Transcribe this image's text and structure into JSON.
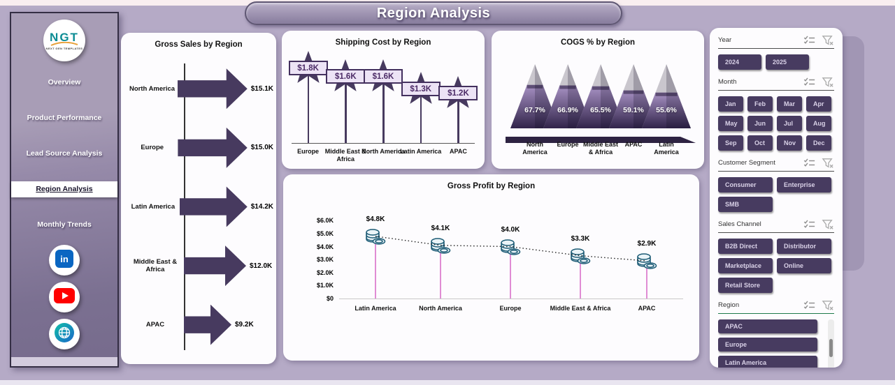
{
  "title": "Region Analysis",
  "sidebar": {
    "logo": {
      "text": "NGT",
      "subtext": "NEXT GEN TEMPLATES"
    },
    "items": [
      {
        "label": "Overview",
        "active": false
      },
      {
        "label": "Product Performance",
        "active": false
      },
      {
        "label": "Lead Source Analysis",
        "active": false
      },
      {
        "label": "Region Analysis",
        "active": true
      },
      {
        "label": "Monthly Trends",
        "active": false
      }
    ],
    "social": [
      "linkedin",
      "youtube",
      "globe"
    ]
  },
  "chart_data": [
    {
      "type": "bar",
      "orientation": "horizontal",
      "title": "Gross Sales by Region",
      "categories": [
        "North America",
        "Europe",
        "Latin America",
        "Middle East & Africa",
        "APAC"
      ],
      "values": [
        15.1,
        15.0,
        14.2,
        12.0,
        9.2
      ],
      "labels": [
        "$15.1K",
        "$15.0K",
        "$14.2K",
        "$12.0K",
        "$9.2K"
      ],
      "unit": "K USD",
      "xlim": [
        0,
        15.1
      ],
      "grid": false
    },
    {
      "type": "lollipop",
      "title": "Shipping Cost by Region",
      "categories": [
        "Europe",
        "Middle East & Africa",
        "North America",
        "Latin America",
        "APAC"
      ],
      "values": [
        1.8,
        1.6,
        1.6,
        1.3,
        1.2
      ],
      "labels": [
        "$1.8K",
        "$1.6K",
        "$1.6K",
        "$1.3K",
        "$1.2K"
      ],
      "unit": "K USD",
      "grid": false
    },
    {
      "type": "pyramid",
      "title": "COGS % by Region",
      "categories": [
        "North America",
        "Europe",
        "Middle East & Africa",
        "APAC",
        "Latin America"
      ],
      "values": [
        67.7,
        66.9,
        65.5,
        59.1,
        55.6
      ],
      "labels": [
        "67.7%",
        "66.9%",
        "65.5%",
        "59.1%",
        "55.6%"
      ],
      "unit": "percent",
      "grid": false
    },
    {
      "type": "line",
      "title": "Gross Profit by Region",
      "categories": [
        "Latin America",
        "North America",
        "Europe",
        "Middle East & Africa",
        "APAC"
      ],
      "values": [
        4.8,
        4.1,
        4.0,
        3.3,
        2.9
      ],
      "labels": [
        "$4.8K",
        "$4.1K",
        "$4.0K",
        "$3.3K",
        "$2.9K"
      ],
      "y_ticks": [
        "$6.0K",
        "$5.0K",
        "$4.0K",
        "$3.0K",
        "$2.0K",
        "$1.0K",
        "$0"
      ],
      "ylim": [
        0,
        6
      ],
      "unit": "K USD",
      "grid": false,
      "marker": "coin-stack-icon",
      "line_style": "dotted"
    }
  ],
  "slicers": [
    {
      "label": "Year",
      "options": [
        "2024",
        "2025"
      ],
      "icons": [
        "select-all-icon",
        "clear-filter-icon"
      ]
    },
    {
      "label": "Month",
      "options": [
        "Jan",
        "Feb",
        "Mar",
        "Apr",
        "May",
        "Jun",
        "Jul",
        "Aug",
        "Sep",
        "Oct",
        "Nov",
        "Dec"
      ],
      "icons": [
        "select-all-icon",
        "clear-filter-icon"
      ]
    },
    {
      "label": "Customer Segment",
      "options": [
        "Consumer",
        "Enterprise",
        "SMB"
      ],
      "icons": [
        "select-all-icon",
        "clear-filter-icon"
      ]
    },
    {
      "label": "Sales Channel",
      "options": [
        "B2B Direct",
        "Distributor",
        "Marketplace",
        "Online",
        "Retail Store"
      ],
      "icons": [
        "select-all-icon",
        "clear-filter-icon"
      ]
    },
    {
      "label": "Region",
      "options": [
        "APAC",
        "Europe",
        "Latin America"
      ],
      "icons": [
        "select-all-icon",
        "clear-filter-icon"
      ],
      "scrollbar": true
    }
  ],
  "colors": {
    "accent_purple": "#473a5f",
    "background": "#b5aac6",
    "panel": "#fdfcfe",
    "pin_tag_bg": "#ece3f5",
    "pyramid_top": "#a18abd",
    "pyramid_bottom": "#3a2b52",
    "pyramid_cap": "#c9c6cd",
    "stem_pink": "#e08cd4",
    "coin_teal": "#1c5b75",
    "region_rule_green": "#1e7a4a",
    "linkedin_blue": "#0a66c2",
    "youtube_red": "#ff0000",
    "globe_teal": "#10c0a8",
    "slicer_text": "#d9d1e7"
  }
}
